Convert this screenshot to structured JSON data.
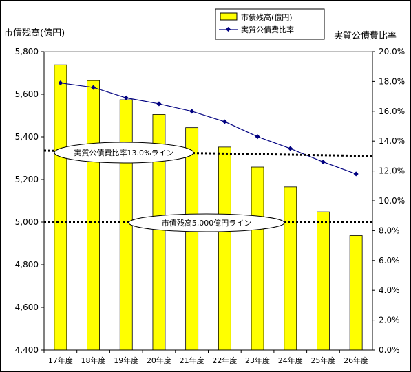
{
  "chart_data": {
    "type": "bar-line",
    "categories": [
      "17年度",
      "18年度",
      "19年度",
      "20年度",
      "21年度",
      "22年度",
      "23年度",
      "24年度",
      "25年度",
      "26年度"
    ],
    "series": [
      {
        "name": "市債残高(億円)",
        "type": "bar",
        "axis": "left",
        "color": "#ffff00",
        "values": [
          5738,
          5664,
          5574,
          5505,
          5443,
          5352,
          5258,
          5165,
          5048,
          4937
        ]
      },
      {
        "name": "実質公債費比率",
        "type": "line",
        "axis": "right",
        "color": "#000080",
        "values": [
          17.9,
          17.6,
          16.9,
          16.5,
          16.0,
          15.3,
          14.3,
          13.5,
          12.6,
          11.8
        ]
      }
    ],
    "left_axis": {
      "label": "市債残高(億円)",
      "min": 4400,
      "max": 5800,
      "step": 200,
      "ticks": [
        "4,400",
        "4,600",
        "4,800",
        "5,000",
        "5,200",
        "5,400",
        "5,600",
        "5,800"
      ]
    },
    "right_axis": {
      "label": "実質公債費比率",
      "min": 0,
      "max": 20,
      "step": 2,
      "ticks": [
        "0.0%",
        "2.0%",
        "4.0%",
        "6.0%",
        "8.0%",
        "10.0%",
        "12.0%",
        "14.0%",
        "16.0%",
        "18.0%",
        "20.0%"
      ]
    },
    "reference_lines": [
      {
        "axis": "right",
        "value": 13.0,
        "label": "実質公債費比率13.0%ライン"
      },
      {
        "axis": "left",
        "value": 5000,
        "label": "市債残高5,000億円ライン"
      }
    ],
    "legend": {
      "position": "top-right"
    },
    "grid": false
  },
  "colors": {
    "bar": "#ffff00",
    "bar_border": "#000000",
    "line": "#000080",
    "reference": "#000000"
  }
}
